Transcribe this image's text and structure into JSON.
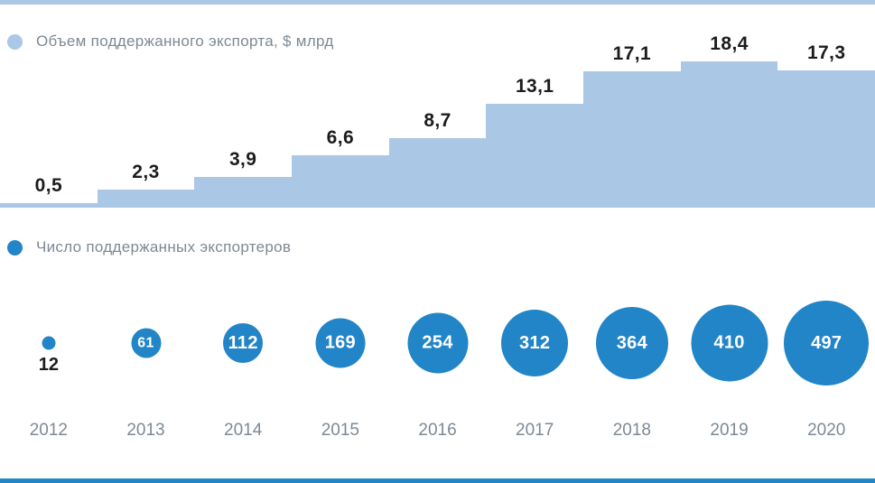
{
  "colors": {
    "area": "#aac7e6",
    "circle": "#2285c7",
    "gray_text": "#7e8994",
    "value_text": "#1c1c1c",
    "top_line": "#aac7e6",
    "bottom_line": "#2285c7"
  },
  "legend_exports": "Объем поддержанного экспорта, $ млрд",
  "legend_exporters": "Число поддержанных экспортеров",
  "chart_data": {
    "type": "combo",
    "categories": [
      "2012",
      "2013",
      "2014",
      "2015",
      "2016",
      "2017",
      "2018",
      "2019",
      "2020"
    ],
    "series": [
      {
        "name": "Объем поддержанного экспорта, $ млрд",
        "type": "area",
        "style": "step",
        "color": "#aac7e6",
        "values": [
          0.5,
          2.3,
          3.9,
          6.6,
          8.7,
          13.1,
          17.1,
          18.4,
          17.3
        ],
        "labels": [
          "0,5",
          "2,3",
          "3,9",
          "6,6",
          "8,7",
          "13,1",
          "17,1",
          "18,4",
          "17,3"
        ]
      },
      {
        "name": "Число поддержанных экспортеров",
        "type": "bubble",
        "color": "#2285c7",
        "values": [
          12,
          61,
          112,
          169,
          254,
          312,
          364,
          410,
          497
        ],
        "labels": [
          "12",
          "61",
          "112",
          "169",
          "254",
          "312",
          "364",
          "410",
          "497"
        ]
      }
    ],
    "title": "",
    "xlabel": "",
    "ylabel": "",
    "legend_position": "inline-left",
    "grid": false,
    "ylim": [
      0,
      18.4
    ]
  }
}
